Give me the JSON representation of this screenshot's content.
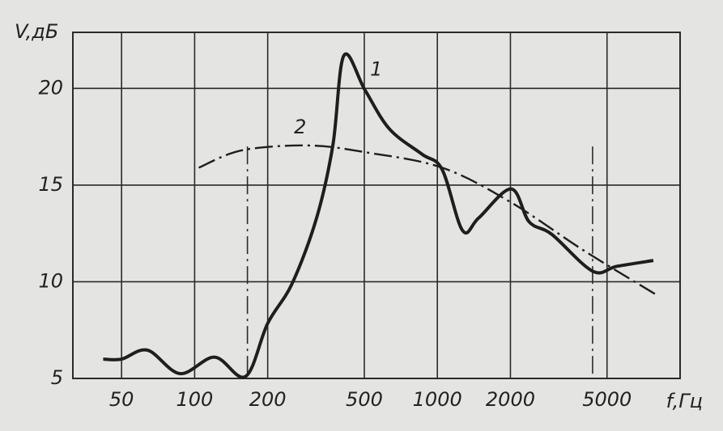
{
  "chart_data": {
    "type": "line",
    "y_label": "V,дБ",
    "x_label": "f,Гц",
    "xscale": "log",
    "grid": true,
    "xlim": [
      31.5,
      10000
    ],
    "ylim": [
      5,
      22.9
    ],
    "xticks": [
      50,
      100,
      200,
      500,
      1000,
      2000,
      5000
    ],
    "yticks": [
      5,
      10,
      15,
      20
    ],
    "vlines": [
      165,
      4360
    ],
    "series": [
      {
        "name": "1",
        "color": "#1e1e1e",
        "dash": false,
        "x": [
          42,
          50,
          64,
          87,
          121,
          162,
          200,
          252,
          318,
          371,
          412,
          504,
          635,
          864,
          1047,
          1270,
          1480,
          2014,
          2388,
          2963,
          4360,
          5490,
          7760
        ],
        "values": [
          6.0,
          6.0,
          6.46,
          5.25,
          6.1,
          5.1,
          7.85,
          9.9,
          13.3,
          17.05,
          21.7,
          19.9,
          17.9,
          16.6,
          15.8,
          12.65,
          13.3,
          14.8,
          13.1,
          12.45,
          10.55,
          10.8,
          11.1
        ]
      },
      {
        "name": "2",
        "color": "#1e1e1e",
        "dash": true,
        "x": [
          104,
          157,
          294,
          504,
          1047,
          2014,
          4030,
          8050
        ],
        "values": [
          15.9,
          16.8,
          17.05,
          16.7,
          15.9,
          14.1,
          11.6,
          9.3
        ]
      }
    ]
  }
}
